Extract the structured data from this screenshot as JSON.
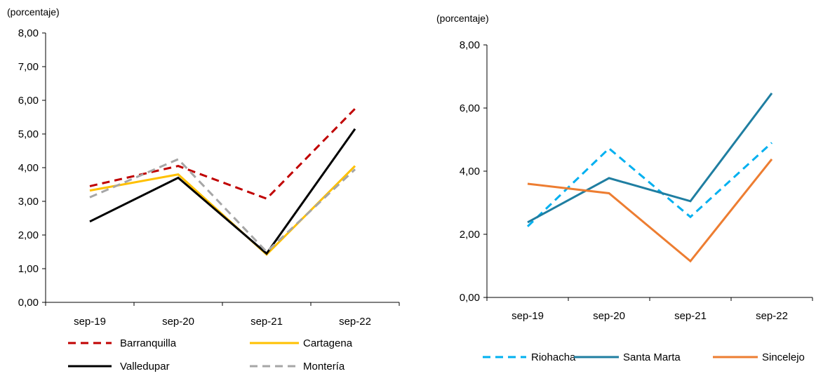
{
  "chart_data": [
    {
      "type": "line",
      "title": "",
      "ylabel": "(porcentaje)",
      "xlabel": "",
      "categories": [
        "sep-19",
        "sep-20",
        "sep-21",
        "sep-22"
      ],
      "ylim": [
        0,
        8
      ],
      "yticks": [
        "0,00",
        "1,00",
        "2,00",
        "3,00",
        "4,00",
        "5,00",
        "6,00",
        "7,00",
        "8,00"
      ],
      "grid": false,
      "legend_position": "bottom",
      "series": [
        {
          "name": "Barranquilla",
          "values": [
            3.45,
            4.05,
            3.08,
            5.75
          ],
          "color": "#c00000",
          "dash": "dashed"
        },
        {
          "name": "Cartagena",
          "values": [
            3.32,
            3.8,
            1.42,
            4.05
          ],
          "color": "#ffc000",
          "dash": "solid"
        },
        {
          "name": "Valledupar",
          "values": [
            2.4,
            3.7,
            1.45,
            5.15
          ],
          "color": "#000000",
          "dash": "solid"
        },
        {
          "name": "Montería",
          "values": [
            3.12,
            4.25,
            1.5,
            3.95
          ],
          "color": "#a6a6a6",
          "dash": "dashed"
        }
      ]
    },
    {
      "type": "line",
      "title": "",
      "ylabel": "(porcentaje)",
      "xlabel": "",
      "categories": [
        "sep-19",
        "sep-20",
        "sep-21",
        "sep-22"
      ],
      "ylim": [
        0,
        8
      ],
      "yticks": [
        "0,00",
        "2,00",
        "4,00",
        "6,00",
        "8,00"
      ],
      "grid": false,
      "legend_position": "bottom",
      "series": [
        {
          "name": "Riohacha",
          "values": [
            2.25,
            4.72,
            2.55,
            4.9
          ],
          "color": "#00b0f0",
          "dash": "dashed"
        },
        {
          "name": "Santa Marta",
          "values": [
            2.38,
            3.78,
            3.05,
            6.47
          ],
          "color": "#1f7ea1",
          "dash": "solid"
        },
        {
          "name": "Sincelejo",
          "values": [
            3.6,
            3.3,
            1.15,
            4.38
          ],
          "color": "#ed7d31",
          "dash": "solid"
        }
      ]
    }
  ]
}
